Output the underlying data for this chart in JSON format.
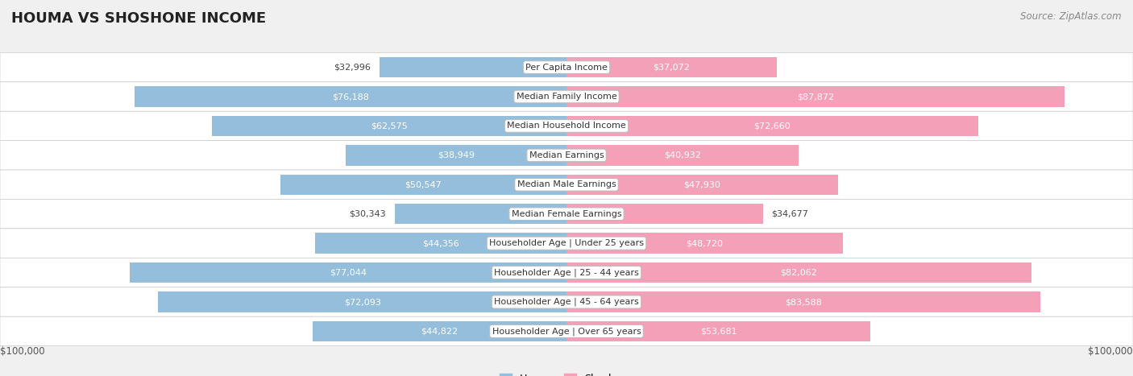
{
  "title": "HOUMA VS SHOSHONE INCOME",
  "source": "Source: ZipAtlas.com",
  "categories": [
    "Per Capita Income",
    "Median Family Income",
    "Median Household Income",
    "Median Earnings",
    "Median Male Earnings",
    "Median Female Earnings",
    "Householder Age | Under 25 years",
    "Householder Age | 25 - 44 years",
    "Householder Age | 45 - 64 years",
    "Householder Age | Over 65 years"
  ],
  "houma_values": [
    32996,
    76188,
    62575,
    38949,
    50547,
    30343,
    44356,
    77044,
    72093,
    44822
  ],
  "shoshone_values": [
    37072,
    87872,
    72660,
    40932,
    47930,
    34677,
    48720,
    82062,
    83588,
    53681
  ],
  "houma_color": "#95bedd",
  "shoshone_color": "#f4a0b8",
  "max_value": 100000,
  "bg_color": "#f0f0f0",
  "row_bg_even": "#e8e8e8",
  "row_bg_odd": "#f5f5f5",
  "axis_label_left": "$100,000",
  "axis_label_right": "$100,000",
  "title_fontsize": 13,
  "source_fontsize": 8.5,
  "bar_label_fontsize": 8,
  "category_fontsize": 8,
  "legend_label_houma": "Houma",
  "legend_label_shoshone": "Shoshone"
}
